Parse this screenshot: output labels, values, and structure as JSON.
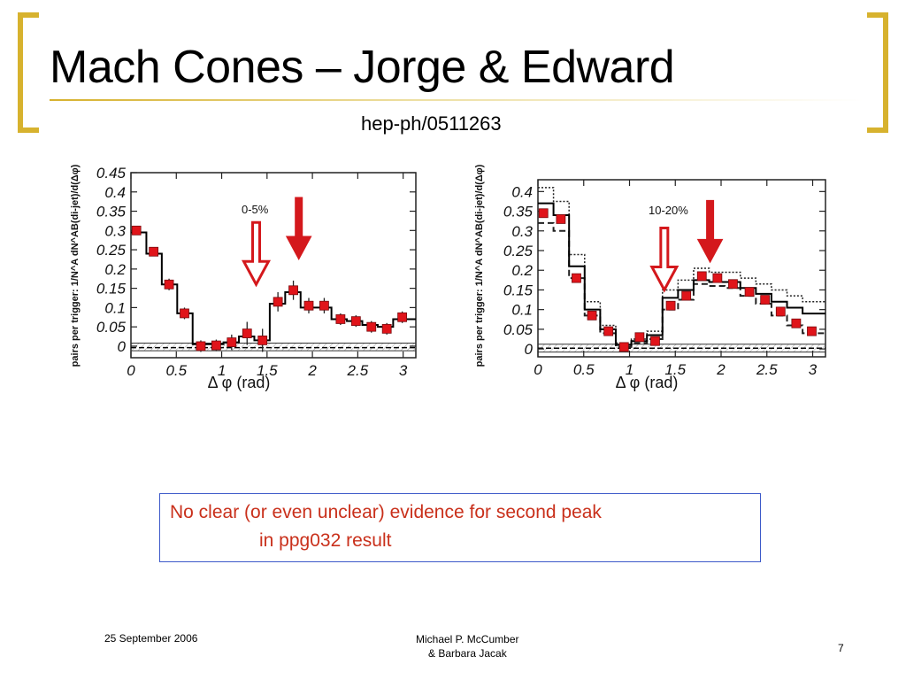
{
  "slide": {
    "title": "Mach Cones – Jorge & Edward",
    "subtitle": "hep-ph/0511263",
    "callout": {
      "line1": "No clear (or even unclear) evidence for second peak",
      "line2": "in ppg032 result"
    },
    "footer": {
      "date": "25 September 2006",
      "author_line1": "Michael P. McCumber",
      "author_line2": "& Barbara Jacak",
      "page": "7"
    },
    "colors": {
      "accent": "#d7b22e",
      "callout_border": "#3c59c9",
      "callout_text": "#c9301b",
      "marker": "#e0141a"
    }
  },
  "chart_data": [
    {
      "type": "scatter",
      "panel_label": "0-5%",
      "ylabel": "pairs per trigger: 1/N^A dN^AB(di-jet)/d(Δφ)",
      "xlabel": "Δ φ (rad)",
      "xlim": [
        0,
        3.14
      ],
      "ylim": [
        -0.03,
        0.45
      ],
      "x_ticks": [
        0,
        0.5,
        1,
        1.5,
        2,
        2.5,
        3
      ],
      "x_tick_labels": [
        "0",
        "0.5",
        "1",
        "1.5",
        "2",
        "2.5",
        "3"
      ],
      "y_ticks": [
        0,
        0.05,
        0.1,
        0.15,
        0.2,
        0.25,
        0.3,
        0.35,
        0.4,
        0.45
      ],
      "y_tick_labels": [
        "0",
        "0.05",
        "0.1",
        "0.15",
        "0.2",
        "0.25",
        "0.3",
        "0.35",
        "0.4",
        "0.45"
      ],
      "series": [
        {
          "marker": "square",
          "x": [
            0.06,
            0.25,
            0.42,
            0.59,
            0.77,
            0.94,
            1.11,
            1.28,
            1.45,
            1.62,
            1.79,
            1.96,
            2.13,
            2.31,
            2.48,
            2.65,
            2.82,
            2.99
          ],
          "y": [
            0.3,
            0.245,
            0.16,
            0.085,
            0.0,
            0.002,
            0.01,
            0.033,
            0.015,
            0.115,
            0.145,
            0.105,
            0.105,
            0.07,
            0.065,
            0.05,
            0.045,
            0.075
          ],
          "err": [
            0.01,
            0.012,
            0.015,
            0.015,
            0.015,
            0.015,
            0.02,
            0.03,
            0.03,
            0.025,
            0.025,
            0.02,
            0.02,
            0.015,
            0.015,
            0.015,
            0.015,
            0.015
          ]
        }
      ],
      "model_steps": {
        "edges": [
          0,
          0.17,
          0.34,
          0.51,
          0.68,
          0.85,
          1.02,
          1.19,
          1.36,
          1.53,
          1.7,
          1.87,
          2.04,
          2.21,
          2.38,
          2.55,
          2.72,
          2.89,
          3.14
        ],
        "values": [
          0.295,
          0.24,
          0.16,
          0.085,
          0.005,
          0.005,
          0.01,
          0.025,
          0.015,
          0.11,
          0.14,
          0.1,
          0.1,
          0.07,
          0.065,
          0.055,
          0.05,
          0.07
        ]
      },
      "arrows": [
        {
          "x": 1.38,
          "y_tip": 0.16,
          "style": "hollow"
        },
        {
          "x": 1.85,
          "y_tip": 0.225,
          "style": "solid"
        }
      ],
      "flow_band": [
        -0.012,
        -0.004,
        0.008
      ]
    },
    {
      "type": "scatter",
      "panel_label": "10-20%",
      "ylabel": "pairs per trigger: 1/N^A dN^AB(di-jet)/d(Δφ)",
      "xlabel": "Δ φ (rad)",
      "xlim": [
        0,
        3.14
      ],
      "ylim": [
        -0.02,
        0.43
      ],
      "x_ticks": [
        0,
        0.5,
        1,
        1.5,
        2,
        2.5,
        3
      ],
      "x_tick_labels": [
        "0",
        "0.5",
        "1",
        "1.5",
        "2",
        "2.5",
        "3"
      ],
      "y_ticks": [
        0,
        0.05,
        0.1,
        0.15,
        0.2,
        0.25,
        0.3,
        0.35,
        0.4
      ],
      "y_tick_labels": [
        "0",
        "0.05",
        "0.1",
        "0.15",
        "0.2",
        "0.25",
        "0.3",
        "0.35",
        "0.4"
      ],
      "series": [
        {
          "marker": "square",
          "x": [
            0.06,
            0.25,
            0.42,
            0.59,
            0.77,
            0.94,
            1.11,
            1.28,
            1.45,
            1.62,
            1.79,
            1.96,
            2.13,
            2.31,
            2.48,
            2.65,
            2.82,
            2.99
          ],
          "y": [
            0.345,
            0.33,
            0.18,
            0.085,
            0.045,
            0.005,
            0.03,
            0.02,
            0.11,
            0.135,
            0.185,
            0.18,
            0.165,
            0.145,
            0.125,
            0.095,
            0.065,
            0.045
          ],
          "err": [
            0.01,
            0.01,
            0.01,
            0.01,
            0.01,
            0.01,
            0.01,
            0.01,
            0.01,
            0.01,
            0.01,
            0.01,
            0.01,
            0.01,
            0.01,
            0.01,
            0.01,
            0.01
          ]
        }
      ],
      "model_steps": {
        "edges": [
          0,
          0.17,
          0.34,
          0.51,
          0.68,
          0.85,
          1.02,
          1.19,
          1.36,
          1.53,
          1.7,
          1.87,
          2.04,
          2.21,
          2.38,
          2.55,
          2.72,
          2.89,
          3.14
        ],
        "values": [
          0.37,
          0.34,
          0.21,
          0.1,
          0.05,
          0.01,
          0.02,
          0.035,
          0.13,
          0.15,
          0.175,
          0.17,
          0.17,
          0.155,
          0.14,
          0.12,
          0.105,
          0.09
        ]
      },
      "model_steps_upper": {
        "values": [
          0.41,
          0.375,
          0.24,
          0.12,
          0.06,
          0.015,
          0.025,
          0.045,
          0.15,
          0.175,
          0.205,
          0.195,
          0.195,
          0.18,
          0.165,
          0.15,
          0.135,
          0.12
        ]
      },
      "model_steps_lower": {
        "values": [
          0.32,
          0.3,
          0.18,
          0.085,
          0.04,
          0.005,
          0.015,
          0.025,
          0.1,
          0.125,
          0.165,
          0.16,
          0.155,
          0.135,
          0.115,
          0.085,
          0.06,
          0.04
        ]
      },
      "arrows": [
        {
          "x": 1.38,
          "y_tip": 0.15,
          "style": "hollow"
        },
        {
          "x": 1.88,
          "y_tip": 0.22,
          "style": "solid"
        }
      ],
      "flow_band": [
        -0.008,
        0.002,
        0.012
      ]
    }
  ]
}
